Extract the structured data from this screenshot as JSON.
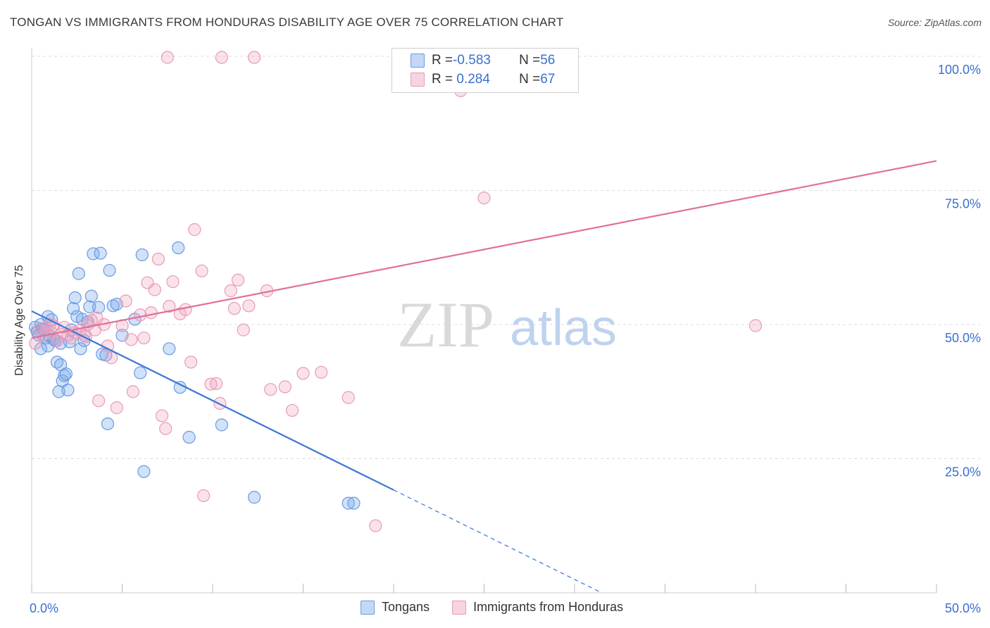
{
  "title": "TONGAN VS IMMIGRANTS FROM HONDURAS DISABILITY AGE OVER 75 CORRELATION CHART",
  "source": "Source: ZipAtlas.com",
  "watermark": {
    "zip": "ZIP",
    "atlas": "atlas"
  },
  "legend": {
    "rows": [
      {
        "r_label": "R = ",
        "r_value": "-0.583",
        "n_label": "N = ",
        "n_value": "56"
      },
      {
        "r_label": "R = ",
        "r_value": " 0.284",
        "n_label": "N = ",
        "n_value": "67"
      }
    ]
  },
  "colors": {
    "blue": "#3a78d4",
    "blue_fill": "rgba(120,168,235,0.35)",
    "blue_stroke": "#6a9be0",
    "pink": "#e0709a",
    "pink_fill": "rgba(240,160,190,0.30)",
    "pink_stroke": "#e99ab8",
    "axis_label": "#3a6fcf",
    "grid": "#dcdcdc"
  },
  "chart_data": {
    "type": "scatter",
    "title": "TONGAN VS IMMIGRANTS FROM HONDURAS DISABILITY AGE OVER 75 CORRELATION CHART",
    "xlabel": "",
    "ylabel": "Disability Age Over 75",
    "xlim": [
      0,
      50
    ],
    "ylim": [
      0,
      100
    ],
    "x_tick_labels": [
      "0.0%",
      "50.0%"
    ],
    "y_ticks": [
      25,
      50,
      75,
      100
    ],
    "y_tick_labels": [
      "25.0%",
      "50.0%",
      "75.0%",
      "100.0%"
    ],
    "grid": true,
    "legend_position": "top-center",
    "series": [
      {
        "name": "Tongans",
        "color": "#3a78d4",
        "r": -0.583,
        "n": 56,
        "trend": {
          "x0": 0,
          "y0": 52.5,
          "x_solid_end": 20,
          "x1": 31.5,
          "y1": 0
        },
        "points": [
          [
            0.2,
            49.5
          ],
          [
            0.3,
            48.7
          ],
          [
            0.5,
            50.0
          ],
          [
            0.6,
            49.2
          ],
          [
            0.8,
            47.5
          ],
          [
            0.9,
            51.5
          ],
          [
            0.9,
            46.0
          ],
          [
            1.0,
            47.8
          ],
          [
            1.1,
            50.9
          ],
          [
            1.2,
            47.3
          ],
          [
            1.3,
            47.0
          ],
          [
            1.4,
            43.0
          ],
          [
            1.5,
            37.5
          ],
          [
            1.6,
            42.5
          ],
          [
            1.7,
            39.5
          ],
          [
            1.8,
            40.5
          ],
          [
            1.9,
            40.8
          ],
          [
            2.0,
            37.8
          ],
          [
            2.1,
            46.8
          ],
          [
            2.2,
            49.0
          ],
          [
            2.3,
            53.0
          ],
          [
            2.4,
            55.0
          ],
          [
            2.5,
            51.5
          ],
          [
            2.6,
            59.5
          ],
          [
            2.7,
            45.5
          ],
          [
            2.8,
            51.0
          ],
          [
            3.1,
            50.5
          ],
          [
            3.2,
            53.3
          ],
          [
            3.3,
            55.3
          ],
          [
            3.4,
            63.2
          ],
          [
            3.7,
            53.2
          ],
          [
            3.8,
            63.3
          ],
          [
            3.9,
            44.5
          ],
          [
            4.1,
            44.3
          ],
          [
            4.2,
            31.5
          ],
          [
            4.3,
            60.1
          ],
          [
            4.5,
            53.5
          ],
          [
            4.7,
            53.8
          ],
          [
            5.0,
            48.0
          ],
          [
            5.7,
            51.0
          ],
          [
            6.0,
            41.0
          ],
          [
            6.1,
            63.0
          ],
          [
            6.2,
            22.6
          ],
          [
            7.6,
            45.5
          ],
          [
            8.1,
            64.3
          ],
          [
            8.2,
            38.3
          ],
          [
            8.7,
            29.0
          ],
          [
            10.5,
            31.3
          ],
          [
            12.3,
            17.8
          ],
          [
            17.5,
            16.7
          ],
          [
            17.8,
            16.7
          ],
          [
            0.4,
            48.0
          ],
          [
            0.7,
            49.0
          ],
          [
            1.6,
            46.5
          ],
          [
            2.9,
            47.0
          ],
          [
            0.5,
            45.5
          ]
        ]
      },
      {
        "name": "Immigrants from Honduras",
        "color": "#e0709a",
        "r": 0.284,
        "n": 67,
        "trend": {
          "x0": 0,
          "y0": 47.5,
          "x1": 50,
          "y1": 80.5
        },
        "points": [
          [
            0.2,
            46.5
          ],
          [
            0.4,
            49.0
          ],
          [
            0.6,
            48.0
          ],
          [
            0.8,
            49.5
          ],
          [
            1.0,
            50.0
          ],
          [
            1.1,
            48.5
          ],
          [
            1.2,
            49.8
          ],
          [
            1.4,
            47.0
          ],
          [
            1.6,
            48.2
          ],
          [
            1.8,
            49.5
          ],
          [
            2.0,
            48.0
          ],
          [
            2.2,
            47.5
          ],
          [
            2.4,
            48.5
          ],
          [
            2.7,
            49.0
          ],
          [
            2.9,
            48.0
          ],
          [
            3.1,
            50.0
          ],
          [
            3.3,
            50.8
          ],
          [
            3.5,
            49.0
          ],
          [
            3.6,
            51.2
          ],
          [
            4.0,
            50.0
          ],
          [
            4.2,
            46.0
          ],
          [
            4.4,
            43.8
          ],
          [
            4.7,
            34.5
          ],
          [
            5.0,
            49.8
          ],
          [
            5.2,
            54.4
          ],
          [
            5.6,
            37.5
          ],
          [
            6.0,
            51.8
          ],
          [
            6.2,
            47.5
          ],
          [
            6.4,
            57.8
          ],
          [
            6.6,
            52.2
          ],
          [
            6.8,
            56.5
          ],
          [
            7.0,
            62.2
          ],
          [
            7.2,
            33.0
          ],
          [
            7.4,
            30.6
          ],
          [
            7.6,
            53.4
          ],
          [
            7.8,
            58.0
          ],
          [
            8.2,
            52.0
          ],
          [
            8.5,
            52.8
          ],
          [
            8.8,
            43.0
          ],
          [
            9.0,
            67.7
          ],
          [
            9.4,
            60.0
          ],
          [
            9.5,
            18.1
          ],
          [
            9.9,
            38.9
          ],
          [
            10.2,
            39.0
          ],
          [
            10.4,
            35.3
          ],
          [
            11.0,
            56.3
          ],
          [
            11.2,
            53.0
          ],
          [
            11.4,
            58.3
          ],
          [
            11.7,
            49.0
          ],
          [
            12.0,
            53.5
          ],
          [
            13.0,
            56.3
          ],
          [
            13.2,
            37.9
          ],
          [
            14.0,
            38.4
          ],
          [
            14.4,
            34.0
          ],
          [
            15.0,
            40.9
          ],
          [
            16.0,
            41.1
          ],
          [
            17.5,
            36.4
          ],
          [
            19.0,
            12.5
          ],
          [
            3.7,
            35.8
          ],
          [
            7.5,
            99.8
          ],
          [
            10.5,
            99.8
          ],
          [
            12.3,
            99.8
          ],
          [
            23.7,
            93.6
          ],
          [
            25.0,
            73.6
          ],
          [
            40.0,
            49.8
          ],
          [
            3.0,
            47.8
          ],
          [
            5.5,
            47.2
          ]
        ]
      }
    ]
  },
  "bottom_legend": [
    {
      "label": "Tongans"
    },
    {
      "label": "Immigrants from Honduras"
    }
  ]
}
